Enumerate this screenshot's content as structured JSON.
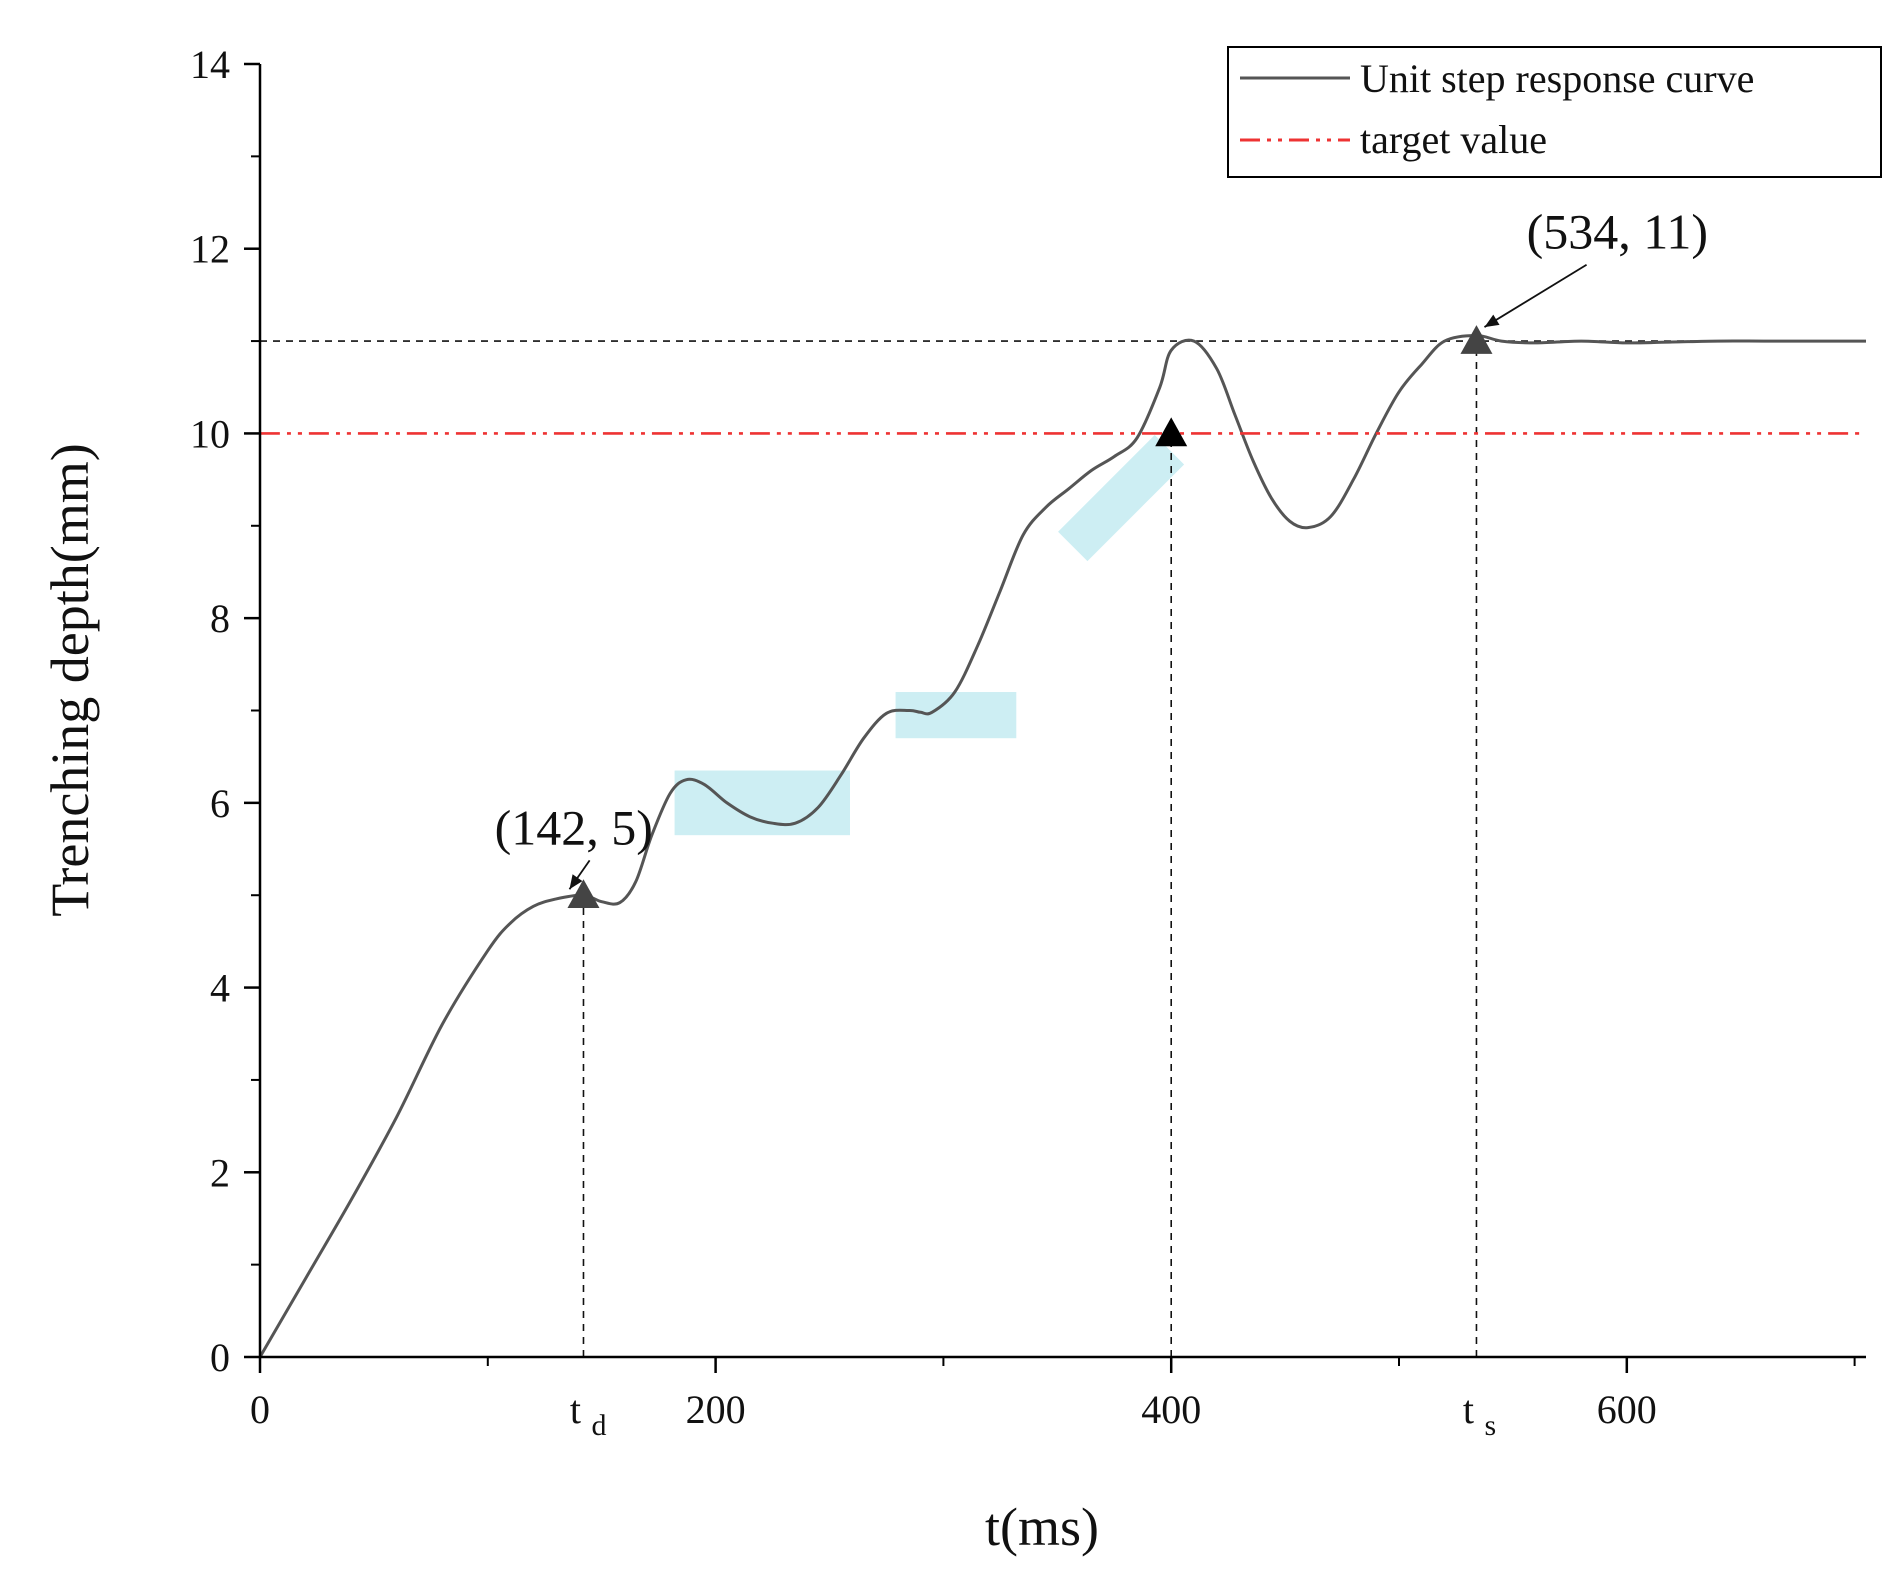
{
  "chart_data": {
    "type": "line",
    "xlabel": "t(ms)",
    "ylabel": "Trenching depth(mm)",
    "xlim": [
      0,
      705
    ],
    "ylim": [
      0,
      14
    ],
    "x_ticks": [
      0,
      200,
      400,
      600
    ],
    "x_minor_ticks": [
      100,
      300,
      500,
      700
    ],
    "y_ticks": [
      0,
      2,
      4,
      6,
      8,
      10,
      12,
      14
    ],
    "y_minor_ticks": [
      1,
      3,
      5,
      7,
      9,
      11,
      13
    ],
    "grid": false,
    "legend_position": "top-right",
    "series": [
      {
        "name": "Unit step response curve",
        "color": "#555555",
        "style": "solid",
        "x": [
          0,
          20,
          40,
          60,
          80,
          100,
          110,
          120,
          130,
          142,
          150,
          158,
          165,
          172,
          180,
          187,
          195,
          205,
          215,
          225,
          235,
          245,
          255,
          265,
          275,
          285,
          290,
          295,
          305,
          315,
          325,
          335,
          345,
          355,
          365,
          375,
          385,
          395,
          400,
          410,
          420,
          428,
          436,
          444,
          452,
          460,
          470,
          480,
          490,
          500,
          510,
          520,
          534,
          545,
          560,
          580,
          600,
          620,
          640,
          660,
          680,
          705
        ],
        "y": [
          0,
          0.85,
          1.7,
          2.6,
          3.6,
          4.4,
          4.7,
          4.88,
          4.96,
          5.0,
          4.93,
          4.92,
          5.15,
          5.65,
          6.1,
          6.25,
          6.2,
          6.0,
          5.85,
          5.78,
          5.78,
          5.95,
          6.3,
          6.7,
          6.97,
          7.0,
          6.98,
          6.98,
          7.2,
          7.7,
          8.3,
          8.9,
          9.2,
          9.4,
          9.6,
          9.75,
          9.95,
          10.5,
          10.9,
          11.0,
          10.7,
          10.2,
          9.7,
          9.3,
          9.05,
          8.98,
          9.1,
          9.5,
          10.0,
          10.45,
          10.75,
          11.0,
          11.06,
          11.0,
          10.98,
          11.0,
          10.98,
          10.99,
          11.0,
          11.0,
          11.0,
          11.0
        ]
      },
      {
        "name": "target value",
        "color": "#ee3333",
        "style": "dash-dot",
        "x": [
          0,
          705
        ],
        "y": [
          10,
          10
        ]
      }
    ],
    "reference_lines": [
      {
        "kind": "horizontal",
        "value": 11,
        "from_x": 0,
        "to_x": 705,
        "style": "dashed"
      },
      {
        "kind": "vertical",
        "value": 142,
        "from_y": 0,
        "to_y": 5,
        "style": "dashed"
      },
      {
        "kind": "vertical",
        "value": 400,
        "from_y": 0,
        "to_y": 10,
        "style": "dashed"
      },
      {
        "kind": "vertical",
        "value": 534,
        "from_y": 0,
        "to_y": 11,
        "style": "dashed"
      }
    ],
    "markers": [
      {
        "x": 142,
        "y": 5,
        "shape": "triangle",
        "color": "#444444"
      },
      {
        "x": 400,
        "y": 10,
        "shape": "triangle",
        "color": "#000000"
      },
      {
        "x": 534,
        "y": 11,
        "shape": "triangle",
        "color": "#444444"
      }
    ],
    "highlights": [
      {
        "x0": 182,
        "x1": 259,
        "y0": 5.65,
        "y1": 6.35,
        "angle": 0,
        "color": "#cdeef3"
      },
      {
        "x0": 279,
        "x1": 332,
        "y0": 6.7,
        "y1": 7.2,
        "angle": 0,
        "color": "#cdeef3"
      },
      {
        "cx": 378,
        "cy": 9.3,
        "length_ms": 60,
        "thickness_mm": 0.45,
        "angle": -45,
        "color": "#cdeef3"
      }
    ],
    "annotations": [
      {
        "text": "(142, 5)",
        "point_x": 142,
        "point_y": 5,
        "text_x": 103,
        "text_y": 5.55
      },
      {
        "text": "(534, 11)",
        "point_x": 534,
        "point_y": 11,
        "text_x": 556,
        "text_y": 12.0
      }
    ],
    "tick_symbols": [
      {
        "main": "t",
        "sub": "d",
        "x": 142
      },
      {
        "main": "t",
        "sub": "s",
        "x": 534
      }
    ]
  }
}
